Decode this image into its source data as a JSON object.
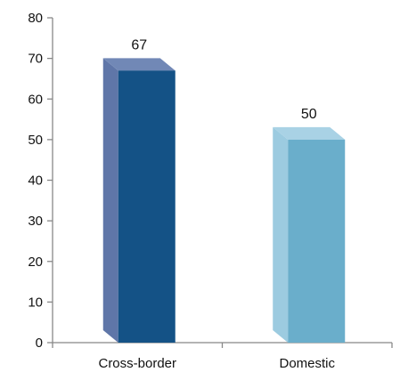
{
  "chart_data": {
    "type": "bar",
    "style": "3d-column",
    "categories": [
      "Cross-border",
      "Domestic"
    ],
    "values": [
      67,
      50
    ],
    "data_labels": [
      "67",
      "50"
    ],
    "ylim": [
      0,
      80
    ],
    "y_ticks": [
      0,
      10,
      20,
      30,
      40,
      50,
      60,
      70,
      80
    ],
    "y_tick_labels": [
      "0",
      "10",
      "20",
      "30",
      "40",
      "50",
      "60",
      "70",
      "80"
    ],
    "grid": false,
    "legend": "none",
    "colors": [
      {
        "front": "#145286",
        "side": "#5f76a8",
        "top": "#7188b6"
      },
      {
        "front": "#6aaecb",
        "side": "#9ccbe0",
        "top": "#a9d2e5"
      }
    ],
    "axis_color": "#888888"
  }
}
